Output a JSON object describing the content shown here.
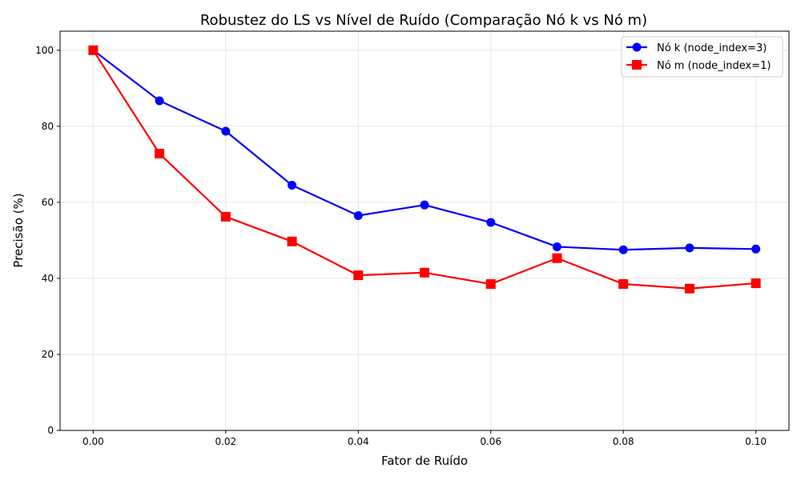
{
  "chart_data": {
    "type": "line",
    "title": "Robustez do LS vs Nível de Ruído (Comparação Nó k vs Nó m)",
    "xlabel": "Fator de Ruído",
    "ylabel": "Precisão (%)",
    "xlim": [
      -0.005,
      0.105
    ],
    "ylim": [
      0,
      105
    ],
    "xticks": [
      "0.00",
      "0.02",
      "0.04",
      "0.06",
      "0.08",
      "0.10"
    ],
    "yticks": [
      "0",
      "20",
      "40",
      "60",
      "80",
      "100"
    ],
    "grid": true,
    "legend_position": "top-right",
    "x": [
      0.0,
      0.01,
      0.02,
      0.03,
      0.04,
      0.05,
      0.06,
      0.07,
      0.08,
      0.09,
      0.1
    ],
    "series": [
      {
        "name": "Nó k (node_index=3)",
        "color": "#0000ff",
        "marker": "circle",
        "values": [
          100,
          86.7,
          78.7,
          64.5,
          56.5,
          59.3,
          54.7,
          48.3,
          47.5,
          48.0,
          47.7
        ]
      },
      {
        "name": "Nó m (node_index=1)",
        "color": "#ff0000",
        "marker": "square",
        "values": [
          100,
          72.8,
          56.2,
          49.7,
          40.8,
          41.5,
          38.5,
          45.3,
          38.5,
          37.3,
          38.7
        ]
      }
    ]
  }
}
